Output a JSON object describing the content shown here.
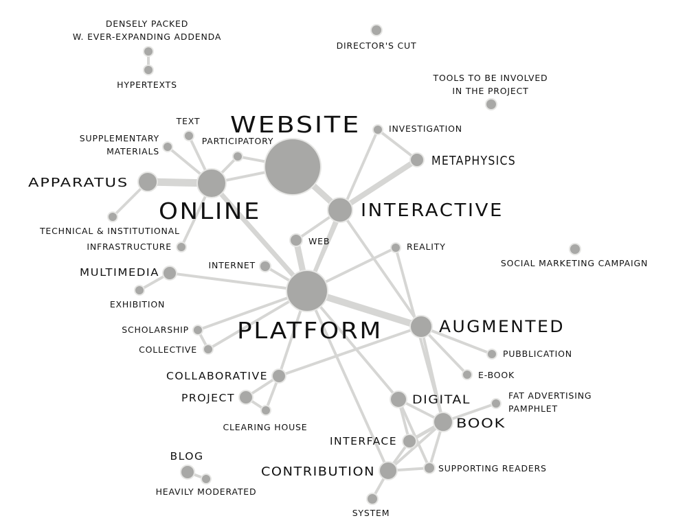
{
  "labels": {
    "densely_packed_1": "DENSELY PACKED",
    "densely_packed_2": "W. EVER-EXPANDING ADDENDA",
    "hypertexts": "HYPERTEXTS",
    "directors_cut": "DIRECTOR'S CUT",
    "tools_1": "TOOLS TO BE INVOLVED",
    "tools_2": "IN THE PROJECT",
    "website": "WEBSITE",
    "investigation": "INVESTIGATION",
    "metaphysics": "METAPHYSICS",
    "text": "TEXT",
    "supplementary_1": "SUPPLEMENTARY",
    "supplementary_2": "MATERIALS",
    "participatory": "PARTICIPATORY",
    "apparatus": "APPARATUS",
    "online": "ONLINE",
    "interactive": "INTERACTIVE",
    "technical_1": "TECHNICAL & INSTITUTIONAL",
    "technical_2": "INFRASTRUCTURE",
    "web": "WEB",
    "reality": "REALITY",
    "social_marketing": "SOCIAL MARKETING CAMPAIGN",
    "multimedia": "MULTIMEDIA",
    "internet": "INTERNET",
    "exhibition": "EXHIBITION",
    "platform": "PLATFORM",
    "augmented": "AUGMENTED",
    "scholarship": "SCHOLARSHIP",
    "collective": "COLLECTIVE",
    "pubblication": "PUBBLICATION",
    "ebook": "E-BOOK",
    "collaborative": "COLLABORATIVE",
    "project": "PROJECT",
    "clearing_house": "CLEARING HOUSE",
    "digital": "DIGITAL",
    "fat_1": "FAT ADVERTISING",
    "fat_2": "PAMPHLET",
    "book": "BOOK",
    "interface": "INTERFACE",
    "blog": "BLOG",
    "heavily_moderated": "HEAVILY MODERATED",
    "contribution": "CONTRIBUTION",
    "supporting_readers": "SUPPORTING READERS",
    "system": "SYSTEM"
  },
  "colors": {
    "node_fill": "#a8a8a6",
    "node_stroke": "#e6e6e4",
    "edge": "#d6d6d4",
    "text": "#111111",
    "background": "#ffffff"
  }
}
